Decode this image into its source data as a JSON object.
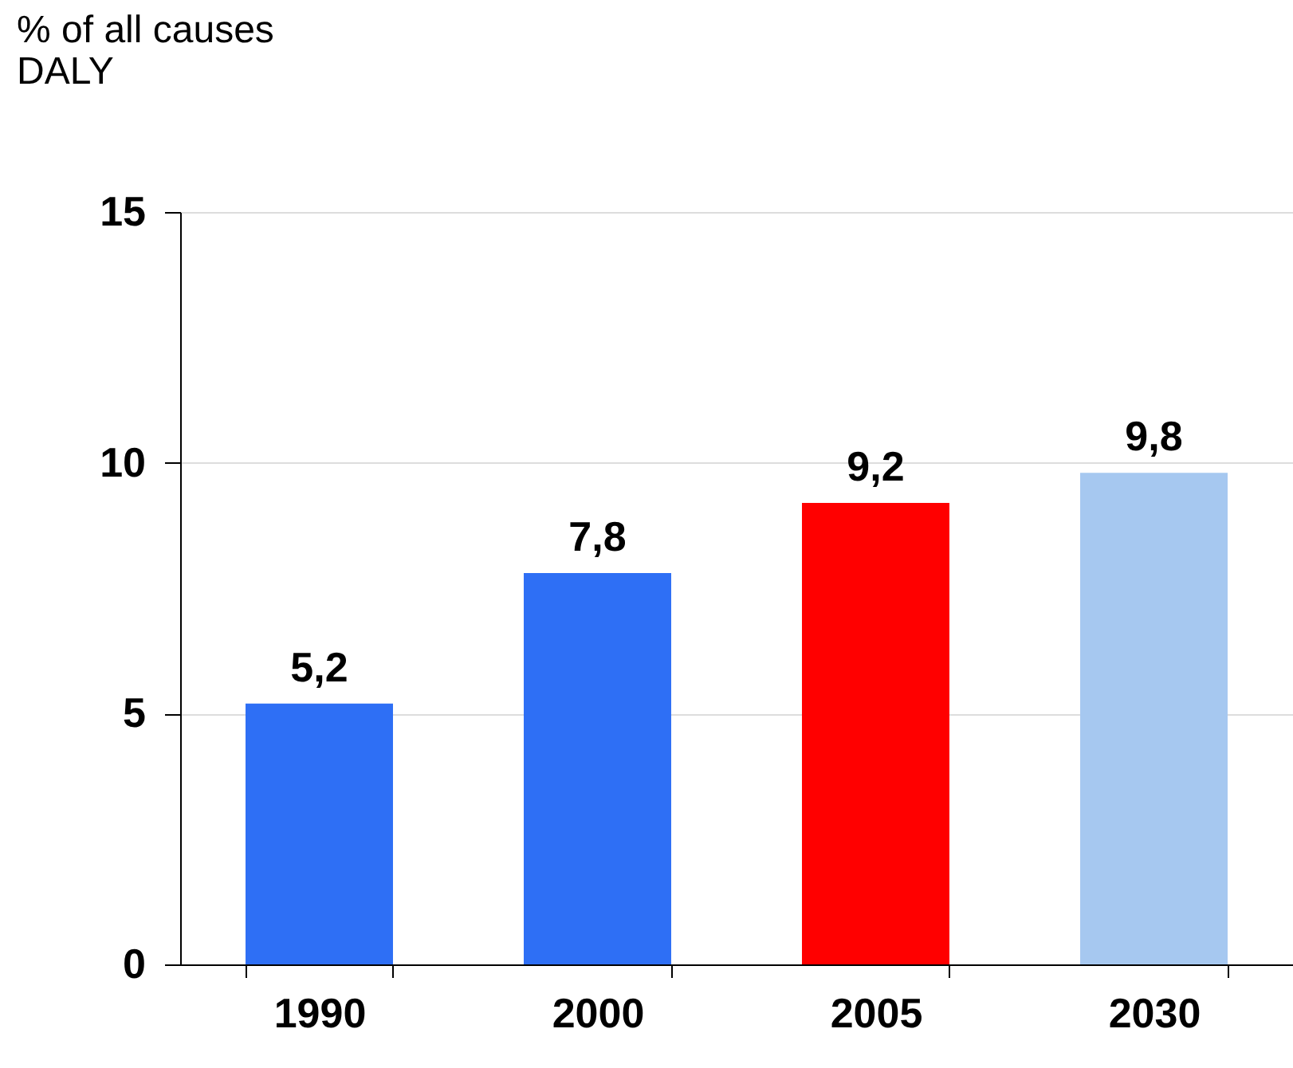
{
  "chart_data": {
    "type": "bar",
    "ylabel": "% of all causes\nDALY",
    "categories": [
      "1990",
      "2000",
      "2005",
      "2030"
    ],
    "values": [
      5.2,
      7.8,
      9.2,
      9.8
    ],
    "colors": [
      "#2e6ff5",
      "#2e6ff5",
      "#ff0000",
      "#a6c8f0"
    ],
    "value_labels": [
      "5,2",
      "7,8",
      "9,2",
      "9,8"
    ],
    "ylim": [
      0,
      15
    ],
    "yticks": [
      0,
      5,
      10,
      15
    ],
    "grid": "y"
  }
}
